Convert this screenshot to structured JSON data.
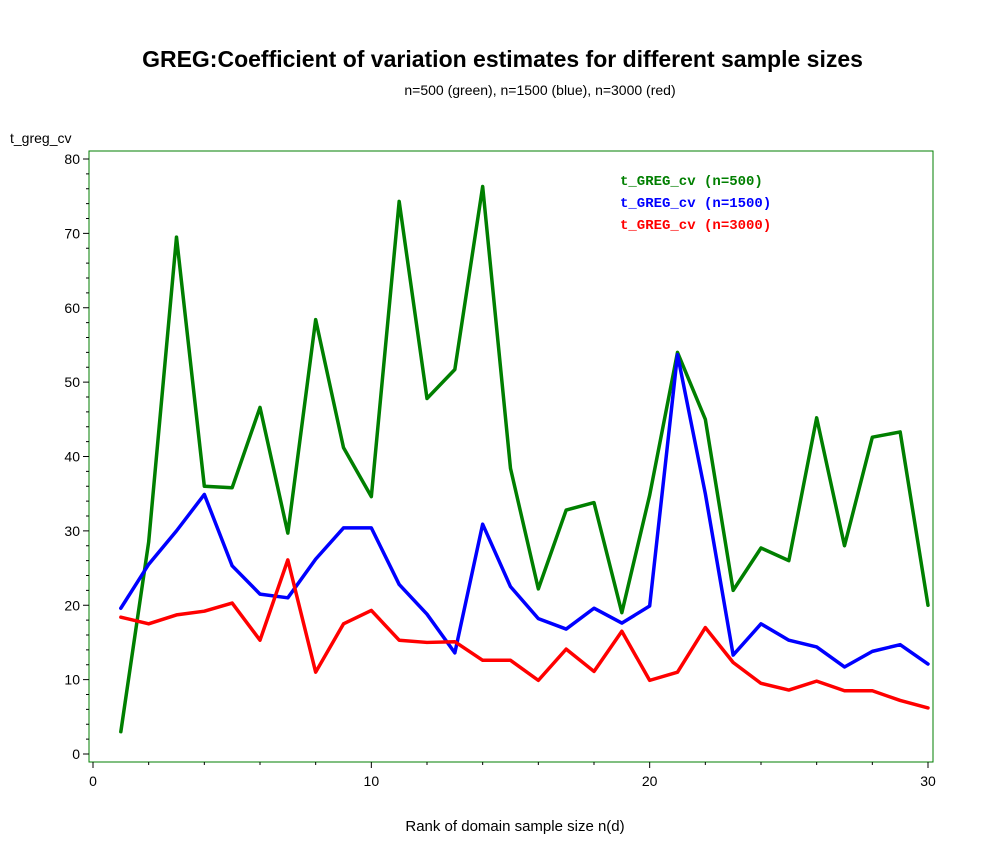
{
  "chart_data": {
    "type": "line",
    "title_prefix": "GREG:",
    "title": "Coefficient of variation estimates for different sample sizes",
    "subtitle": "n=500 (green), n=1500 (blue), n=3000 (red)",
    "ylabel": "t_greg_cv",
    "xlabel": "Rank of domain sample size n(d)",
    "xlim": [
      0,
      30
    ],
    "ylim": [
      0,
      80
    ],
    "x_ticks": [
      0,
      10,
      20,
      30
    ],
    "y_ticks": [
      0,
      10,
      20,
      30,
      40,
      50,
      60,
      70,
      80
    ],
    "legend_position": "top-right",
    "x": [
      1,
      2,
      3,
      4,
      5,
      6,
      7,
      8,
      9,
      10,
      11,
      12,
      13,
      14,
      15,
      16,
      17,
      18,
      19,
      20,
      21,
      22,
      23,
      24,
      25,
      26,
      27,
      28,
      29,
      30
    ],
    "series": [
      {
        "name": "t_GREG_cv (n=500)",
        "color": "#007f00",
        "values": [
          3,
          28.5,
          69.5,
          36,
          35.8,
          46.6,
          29.7,
          58.4,
          41.2,
          34.6,
          74.3,
          47.8,
          51.7,
          76.3,
          38.4,
          22.2,
          32.8,
          33.8,
          19,
          34.8,
          54,
          45,
          22,
          27.7,
          26,
          45.2,
          28,
          42.6,
          43.3,
          20
        ]
      },
      {
        "name": "t_GREG_cv (n=1500)",
        "color": "#0000ff",
        "values": [
          19.6,
          25.5,
          30,
          34.9,
          25.3,
          21.5,
          21,
          26.2,
          30.4,
          30.4,
          22.8,
          18.8,
          13.6,
          30.9,
          22.5,
          18.2,
          16.8,
          19.6,
          17.6,
          19.9,
          53.7,
          35,
          13.3,
          17.5,
          15.3,
          14.4,
          11.7,
          13.8,
          14.7,
          12.1
        ]
      },
      {
        "name": "t_GREG_cv (n=3000)",
        "color": "#ff0000",
        "values": [
          18.4,
          17.5,
          18.7,
          19.2,
          20.3,
          15.3,
          26.1,
          11,
          17.5,
          19.3,
          15.3,
          15,
          15.1,
          12.6,
          12.6,
          9.9,
          14.1,
          11.1,
          16.5,
          9.9,
          11,
          17,
          12.3,
          9.5,
          8.6,
          9.8,
          8.5,
          8.5,
          7.2,
          6.2
        ]
      }
    ]
  }
}
